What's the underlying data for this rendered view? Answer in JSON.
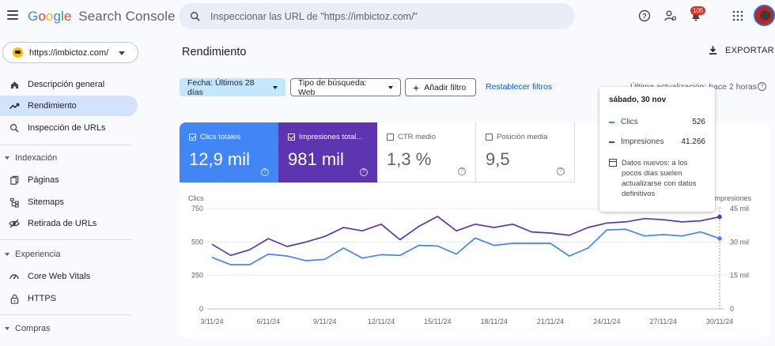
{
  "app": {
    "logo_letters": [
      "G",
      "o",
      "o",
      "g",
      "l",
      "e"
    ],
    "logo_rest": "Search Console"
  },
  "search": {
    "placeholder": "Inspeccionar las URL de \"https://imbictoz.com/\""
  },
  "header": {
    "notification_count": "105"
  },
  "property": {
    "url": "https://imbictoz.com/"
  },
  "sidebar": {
    "items": [
      {
        "label": "Descripción general",
        "icon": "home-icon"
      },
      {
        "label": "Rendimiento",
        "icon": "trending-up-icon",
        "active": true
      },
      {
        "label": "Inspección de URLs",
        "icon": "search-icon"
      }
    ],
    "sections": [
      {
        "title": "Indexación",
        "items": [
          {
            "label": "Páginas",
            "icon": "pages-icon"
          },
          {
            "label": "Sitemaps",
            "icon": "sitemap-icon"
          },
          {
            "label": "Retirada de URLs",
            "icon": "eye-off-icon"
          }
        ]
      },
      {
        "title": "Experiencia",
        "items": [
          {
            "label": "Core Web Vitals",
            "icon": "gauge-icon"
          },
          {
            "label": "HTTPS",
            "icon": "lock-icon"
          }
        ]
      },
      {
        "title": "Compras",
        "items": []
      }
    ]
  },
  "main": {
    "title": "Rendimiento",
    "export_label": "EXPORTAR",
    "filters": {
      "date": "Fecha: Últimos 28 días",
      "search_type": "Tipo de búsqueda: Web",
      "add_filter": "Añadir filtro",
      "reset": "Restablecer filtros"
    },
    "last_update": "Última actualización: hace 2 horas"
  },
  "metrics": [
    {
      "label": "Clics totales",
      "value": "12,9 mil",
      "checked": true,
      "color": "#4285f4"
    },
    {
      "label": "Impresiones total...",
      "value": "981 mil",
      "checked": true,
      "color": "#5e35b1"
    },
    {
      "label": "CTR medio",
      "value": "1,3 %",
      "checked": false
    },
    {
      "label": "Posición media",
      "value": "9,5",
      "checked": false
    }
  ],
  "tooltip": {
    "date": "sábado, 30 nov",
    "rows": [
      {
        "label": "Clics",
        "value": "526",
        "color": "#4285f4"
      },
      {
        "label": "Impresiones",
        "value": "41.266",
        "color": "#5e35b1"
      }
    ],
    "note": "Datos nuevos: a los pocos días suelen actualizarse con datos definitivos"
  },
  "chart_data": {
    "type": "line",
    "x": [
      "3/11/24",
      "4/11/24",
      "5/11/24",
      "6/11/24",
      "7/11/24",
      "8/11/24",
      "9/11/24",
      "10/11/24",
      "11/11/24",
      "12/11/24",
      "13/11/24",
      "14/11/24",
      "15/11/24",
      "16/11/24",
      "17/11/24",
      "18/11/24",
      "19/11/24",
      "20/11/24",
      "21/11/24",
      "22/11/24",
      "23/11/24",
      "24/11/24",
      "25/11/24",
      "26/11/24",
      "27/11/24",
      "28/11/24",
      "29/11/24",
      "30/11/24"
    ],
    "x_tick_labels": [
      "3/11/24",
      "6/11/24",
      "9/11/24",
      "12/11/24",
      "15/11/24",
      "18/11/24",
      "21/11/24",
      "24/11/24",
      "27/11/24",
      "30/11/24"
    ],
    "ylabel_left": "Clics",
    "ylabel_right": "Impresiones",
    "ylim_left": [
      0,
      750
    ],
    "ylim_right": [
      0,
      45000
    ],
    "yticks_left": [
      "0",
      "250",
      "500",
      "750"
    ],
    "yticks_right": [
      "0",
      "15 mil",
      "30 mil",
      "45 mil"
    ],
    "series": [
      {
        "name": "Clics",
        "axis": "left",
        "color": "#4285f4",
        "values": [
          385,
          330,
          330,
          410,
          395,
          360,
          370,
          455,
          380,
          405,
          400,
          475,
          470,
          410,
          530,
          475,
          490,
          490,
          490,
          395,
          455,
          590,
          595,
          545,
          555,
          545,
          575,
          526
        ]
      },
      {
        "name": "Impresiones",
        "axis": "right",
        "color": "#5e35b1",
        "values": [
          29000,
          24000,
          26500,
          31500,
          28000,
          30000,
          32500,
          36500,
          35000,
          38000,
          31000,
          37000,
          41500,
          35000,
          38000,
          36500,
          38000,
          34500,
          34000,
          33000,
          36500,
          38500,
          39000,
          40500,
          40000,
          39000,
          39500,
          41266
        ]
      }
    ],
    "grid": true,
    "highlight_index": 27
  }
}
